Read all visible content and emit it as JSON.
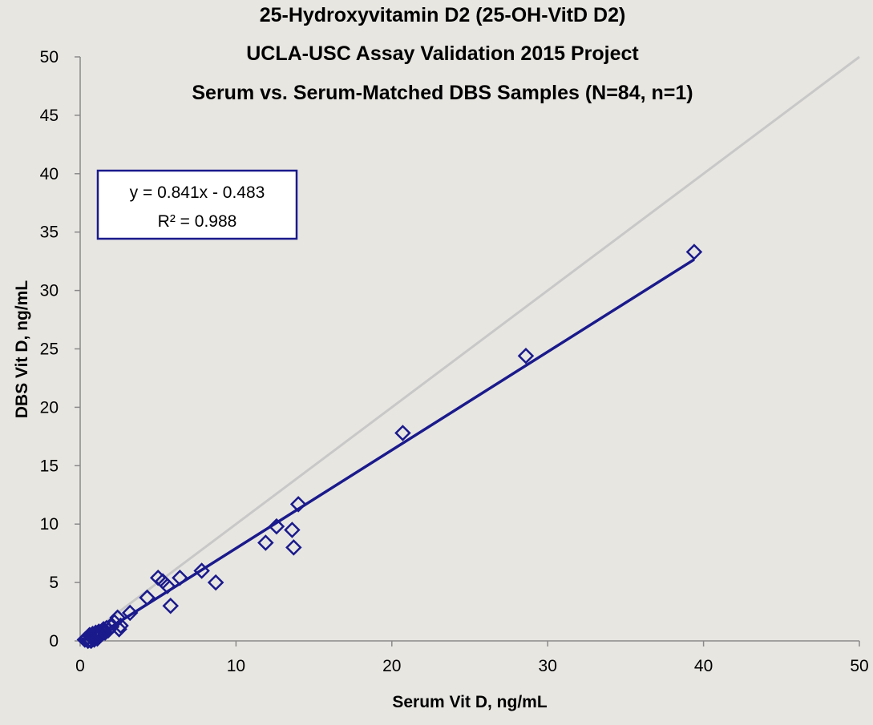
{
  "chart_data": {
    "type": "scatter",
    "title_lines": [
      "25-Hydroxyvitamin D2 (25-OH-VitD D2)",
      "UCLA-USC Assay Validation 2015 Project",
      "Serum vs. Serum-Matched DBS Samples (N=84, n=1)"
    ],
    "xlabel": "Serum Vit D, ng/mL",
    "ylabel": "DBS Vit D, ng/mL",
    "xlim": [
      0,
      50
    ],
    "ylim": [
      0,
      50
    ],
    "x_ticks": [
      "0",
      "10",
      "20",
      "30",
      "40",
      "50"
    ],
    "y_ticks": [
      "0",
      "5",
      "10",
      "15",
      "20",
      "25",
      "30",
      "35",
      "40",
      "45",
      "50"
    ],
    "grid": false,
    "series": [
      {
        "marker": "diamond-open",
        "color": "#1a1a8c",
        "points": [
          [
            0.3,
            0.1
          ],
          [
            0.4,
            0.2
          ],
          [
            0.5,
            0.0
          ],
          [
            0.5,
            0.3
          ],
          [
            0.6,
            0.1
          ],
          [
            0.6,
            0.5
          ],
          [
            0.7,
            0.0
          ],
          [
            0.7,
            0.4
          ],
          [
            0.8,
            0.2
          ],
          [
            0.8,
            0.6
          ],
          [
            0.9,
            0.1
          ],
          [
            0.9,
            0.5
          ],
          [
            1.0,
            0.3
          ],
          [
            1.0,
            0.7
          ],
          [
            1.1,
            0.2
          ],
          [
            1.1,
            0.6
          ],
          [
            1.2,
            0.4
          ],
          [
            1.2,
            0.8
          ],
          [
            1.3,
            0.5
          ],
          [
            1.4,
            0.6
          ],
          [
            1.5,
            0.8
          ],
          [
            1.5,
            1.0
          ],
          [
            1.6,
            0.7
          ],
          [
            1.7,
            1.1
          ],
          [
            1.8,
            0.9
          ],
          [
            2.0,
            1.2
          ],
          [
            2.2,
            1.6
          ],
          [
            2.4,
            2.0
          ],
          [
            2.5,
            1.0
          ],
          [
            2.6,
            1.3
          ],
          [
            3.2,
            2.4
          ],
          [
            4.3,
            3.7
          ],
          [
            5.0,
            5.4
          ],
          [
            5.3,
            5.1
          ],
          [
            5.6,
            4.7
          ],
          [
            5.8,
            3.0
          ],
          [
            6.4,
            5.4
          ],
          [
            7.8,
            6.0
          ],
          [
            8.7,
            5.0
          ],
          [
            11.9,
            8.4
          ],
          [
            12.6,
            9.8
          ],
          [
            13.6,
            9.5
          ],
          [
            13.7,
            8.0
          ],
          [
            14.0,
            11.7
          ],
          [
            20.7,
            17.8
          ],
          [
            28.6,
            24.4
          ],
          [
            39.4,
            33.3
          ]
        ]
      }
    ],
    "trendline": {
      "slope": 0.841,
      "intercept": -0.483,
      "color": "#1a1a8c",
      "x_range": [
        0.5,
        39.4
      ]
    },
    "identity_line": {
      "color": "#c8c8c8"
    },
    "equation_box": {
      "line1": "y = 0.841x - 0.483",
      "line2": "R² = 0.988",
      "border_color": "#1a1a8c"
    }
  }
}
